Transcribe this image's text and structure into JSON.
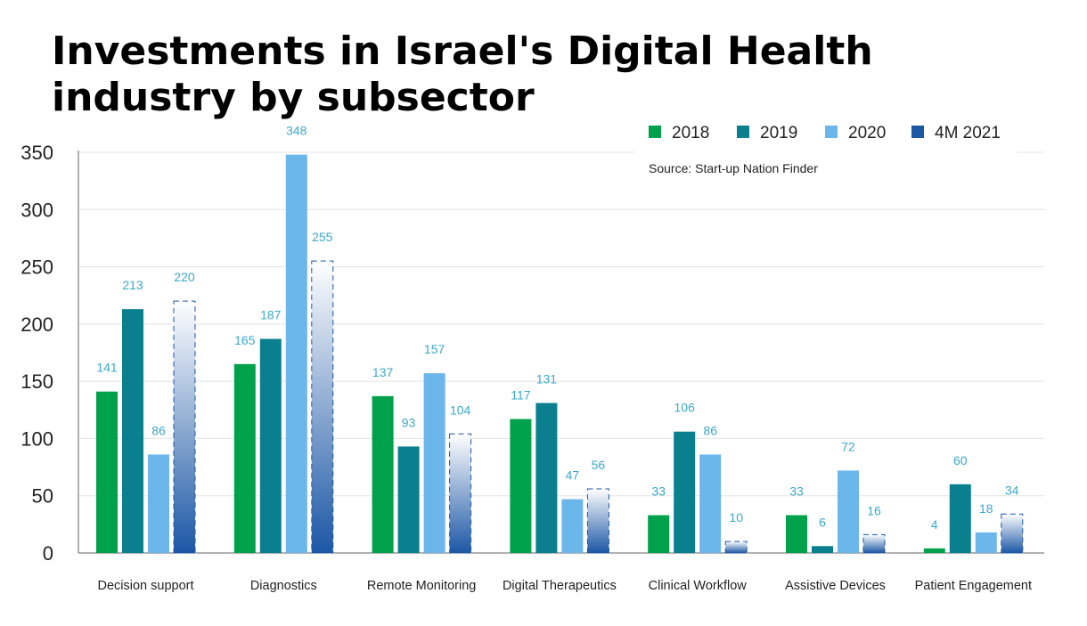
{
  "title": "Investments in Israel's Digital Health industry by subsector",
  "source": "Source: Start-up Nation Finder",
  "colors": {
    "2018": "#00a14b",
    "2019": "#0a7f8e",
    "2020": "#6bb6ea",
    "4M 2021": "#1c57a5",
    "data_label": "#3aa8c9",
    "axis_text": "#222222",
    "grid": "#e3e3e3"
  },
  "chart_data": {
    "type": "bar",
    "categories": [
      "Decision support",
      "Diagnostics",
      "Remote Monitoring",
      "Digital Therapeutics",
      "Clinical Workflow",
      "Assistive Devices",
      "Patient Engagement"
    ],
    "series": [
      {
        "name": "2018",
        "values": [
          141,
          165,
          137,
          117,
          33,
          33,
          4
        ]
      },
      {
        "name": "2019",
        "values": [
          213,
          187,
          93,
          131,
          106,
          6,
          60
        ]
      },
      {
        "name": "2020",
        "values": [
          86,
          348,
          157,
          47,
          86,
          72,
          18
        ]
      },
      {
        "name": "4M 2021",
        "values": [
          220,
          255,
          104,
          56,
          10,
          16,
          34
        ]
      }
    ],
    "yticks": [
      0,
      50,
      100,
      150,
      200,
      250,
      300,
      350
    ],
    "ylim": [
      0,
      350
    ],
    "grid": true,
    "legend_position": "top-right",
    "xlabel": "",
    "ylabel": ""
  }
}
